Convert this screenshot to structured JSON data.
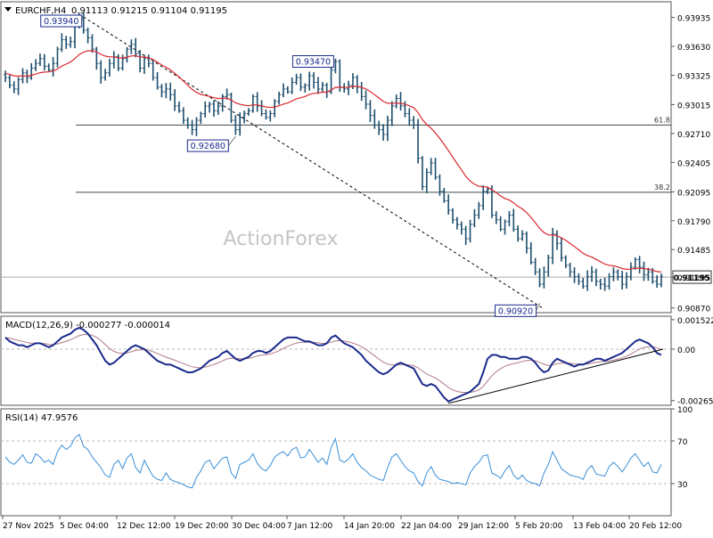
{
  "chart_data": {
    "type": "candlestick",
    "symbol_header": "EURCHF,H4",
    "ohlc_header": "0.91113 0.91215 0.91104 0.91195",
    "watermark": "ActionForex",
    "price": {
      "ylim": [
        0.9082,
        0.941
      ],
      "yticks": [
        "0.93935",
        "0.93630",
        "0.93325",
        "0.93015",
        "0.92710",
        "0.92405",
        "0.92095",
        "0.91790",
        "0.91485",
        "0.91195",
        "0.90870"
      ],
      "last_price_label": "0.91195",
      "last_price": 0.91195,
      "fib_levels": [
        {
          "label": "61.8",
          "value": 0.928
        },
        {
          "label": "38.2",
          "value": 0.9209
        }
      ],
      "annotations": [
        {
          "label": "0.93940",
          "value": 0.9394,
          "bar": 18
        },
        {
          "label": "0.93470",
          "value": 0.9347,
          "bar": 76
        },
        {
          "label": "0.92680",
          "value": 0.9268,
          "bar": 53
        },
        {
          "label": "0.90920",
          "value": 0.9092,
          "bar": 123
        }
      ],
      "close": [
        0.933,
        0.9322,
        0.9318,
        0.9328,
        0.9335,
        0.933,
        0.934,
        0.9345,
        0.935,
        0.9342,
        0.9338,
        0.9345,
        0.936,
        0.937,
        0.9365,
        0.9368,
        0.9385,
        0.9394,
        0.938,
        0.9372,
        0.936,
        0.9345,
        0.933,
        0.9335,
        0.9345,
        0.9352,
        0.934,
        0.935,
        0.936,
        0.9365,
        0.9355,
        0.934,
        0.935,
        0.9345,
        0.933,
        0.932,
        0.9315,
        0.9318,
        0.9312,
        0.93,
        0.9295,
        0.9285,
        0.928,
        0.9275,
        0.9285,
        0.9292,
        0.93,
        0.9302,
        0.9295,
        0.93,
        0.931,
        0.9312,
        0.9285,
        0.9275,
        0.9288,
        0.9292,
        0.9295,
        0.931,
        0.93,
        0.9292,
        0.9288,
        0.9292,
        0.9305,
        0.9312,
        0.9318,
        0.9315,
        0.9325,
        0.933,
        0.932,
        0.9322,
        0.9332,
        0.9325,
        0.9318,
        0.9322,
        0.9315,
        0.9338,
        0.9347,
        0.932,
        0.9318,
        0.9322,
        0.933,
        0.932,
        0.931,
        0.9302,
        0.929,
        0.928,
        0.9275,
        0.927,
        0.9285,
        0.93,
        0.9308,
        0.93,
        0.9292,
        0.9285,
        0.928,
        0.9245,
        0.9215,
        0.923,
        0.924,
        0.9225,
        0.921,
        0.92,
        0.919,
        0.918,
        0.9175,
        0.917,
        0.916,
        0.9175,
        0.9185,
        0.9195,
        0.921,
        0.9212,
        0.9185,
        0.918,
        0.917,
        0.9178,
        0.9185,
        0.917,
        0.916,
        0.9165,
        0.915,
        0.9135,
        0.9125,
        0.9112,
        0.9125,
        0.914,
        0.9165,
        0.9155,
        0.914,
        0.9132,
        0.9125,
        0.912,
        0.9115,
        0.911,
        0.912,
        0.9125,
        0.9115,
        0.9112,
        0.911,
        0.912,
        0.9125,
        0.912,
        0.9112,
        0.912,
        0.913,
        0.9138,
        0.913,
        0.9122,
        0.9125,
        0.9115,
        0.9112,
        0.912
      ]
    },
    "macd": {
      "label": "MACD(12,26,9) -0.000277 -0.000014",
      "ylim": [
        -0.0029,
        0.0017
      ],
      "yticks": [
        "0.001522",
        "0.00",
        "-0.002657"
      ],
      "values": [
        0.0006,
        0.0004,
        0.0003,
        0.0002,
        0.0002,
        0.0001,
        0.0002,
        0.0003,
        0.0003,
        0.0002,
        0.0001,
        0.0002,
        0.0004,
        0.0006,
        0.0007,
        0.0008,
        0.001,
        0.0011,
        0.001,
        0.0008,
        0.0005,
        0.0002,
        -0.0002,
        -0.0006,
        -0.0008,
        -0.0007,
        -0.0005,
        -0.0003,
        -0.0001,
        0.0001,
        0.0002,
        0.0001,
        0.0,
        -0.0002,
        -0.0004,
        -0.0006,
        -0.0007,
        -0.0008,
        -0.0008,
        -0.0009,
        -0.001,
        -0.0011,
        -0.0012,
        -0.0012,
        -0.0011,
        -0.001,
        -0.0008,
        -0.0006,
        -0.0005,
        -0.0004,
        -0.0002,
        -0.0001,
        -0.0003,
        -0.0005,
        -0.0006,
        -0.0005,
        -0.0004,
        -0.0002,
        -0.0001,
        -0.0001,
        -0.0002,
        -0.0001,
        0.0001,
        0.0003,
        0.0005,
        0.0006,
        0.0006,
        0.0006,
        0.0005,
        0.0004,
        0.0004,
        0.0003,
        0.0002,
        0.0002,
        0.0003,
        0.0006,
        0.0007,
        0.0005,
        0.0003,
        0.0002,
        0.0001,
        -0.0001,
        -0.0003,
        -0.0006,
        -0.0008,
        -0.001,
        -0.0012,
        -0.0013,
        -0.0012,
        -0.001,
        -0.0008,
        -0.0007,
        -0.0008,
        -0.0009,
        -0.001,
        -0.0014,
        -0.0018,
        -0.0019,
        -0.0018,
        -0.0019,
        -0.0022,
        -0.0025,
        -0.0027,
        -0.0026,
        -0.0025,
        -0.0024,
        -0.0023,
        -0.0022,
        -0.002,
        -0.0018,
        -0.0012,
        -0.0005,
        -0.0003,
        -0.0003,
        -0.0004,
        -0.0004,
        -0.0005,
        -0.0005,
        -0.0005,
        -0.0004,
        -0.0004,
        -0.0005,
        -0.0007,
        -0.001,
        -0.0012,
        -0.0011,
        -0.0007,
        -0.0005,
        -0.0006,
        -0.0007,
        -0.0008,
        -0.0009,
        -0.0008,
        -0.0008,
        -0.0007,
        -0.0006,
        -0.0005,
        -0.0005,
        -0.0006,
        -0.0005,
        -0.0004,
        -0.0003,
        -0.0002,
        0.0,
        0.0002,
        0.0004,
        0.0005,
        0.0004,
        0.0003,
        0.0001,
        -0.0002,
        -0.0003
      ]
    },
    "rsi": {
      "label": "RSI(14) 47.9576",
      "ylim": [
        0,
        100
      ],
      "yticks": [
        "100",
        "70",
        "30",
        "0"
      ],
      "levels": [
        70,
        30
      ],
      "values": [
        55,
        50,
        48,
        52,
        57,
        50,
        49,
        58,
        55,
        50,
        52,
        48,
        60,
        66,
        62,
        65,
        73,
        76,
        65,
        62,
        55,
        50,
        45,
        38,
        36,
        48,
        52,
        44,
        54,
        58,
        45,
        40,
        52,
        44,
        37,
        34,
        33,
        40,
        34,
        32,
        31,
        29,
        27,
        26,
        36,
        42,
        50,
        52,
        44,
        49,
        54,
        55,
        40,
        35,
        48,
        50,
        52,
        58,
        49,
        44,
        42,
        47,
        55,
        58,
        60,
        56,
        62,
        64,
        54,
        55,
        62,
        56,
        50,
        54,
        48,
        64,
        72,
        52,
        50,
        53,
        58,
        50,
        45,
        42,
        38,
        36,
        34,
        33,
        45,
        55,
        58,
        52,
        46,
        42,
        40,
        32,
        28,
        40,
        46,
        38,
        34,
        33,
        32,
        30,
        31,
        30,
        29,
        40,
        46,
        50,
        56,
        57,
        40,
        38,
        35,
        42,
        47,
        38,
        34,
        38,
        33,
        31,
        30,
        28,
        40,
        48,
        60,
        52,
        44,
        41,
        38,
        37,
        36,
        34,
        43,
        47,
        39,
        38,
        37,
        46,
        50,
        46,
        41,
        47,
        54,
        58,
        52,
        46,
        50,
        41,
        40,
        48
      ]
    },
    "x_labels": [
      "27 Nov 2025",
      "5 Dec 04:00",
      "12 Dec 12:00",
      "19 Dec 20:00",
      "30 Dec 04:00",
      "7 Jan 12:00",
      "14 Jan 20:00",
      "22 Jan 04:00",
      "29 Jan 12:00",
      "5 Feb 20:00",
      "13 Feb 04:00",
      "20 Feb 12:00"
    ],
    "colors": {
      "candle": "#1e4f6e",
      "ma": "#d9272e",
      "macd": "#1a2a8c",
      "signal": "#b07a8a",
      "rsi": "#3a8fd8",
      "grid": "#b8b8b8",
      "trendline": "#000000"
    }
  }
}
